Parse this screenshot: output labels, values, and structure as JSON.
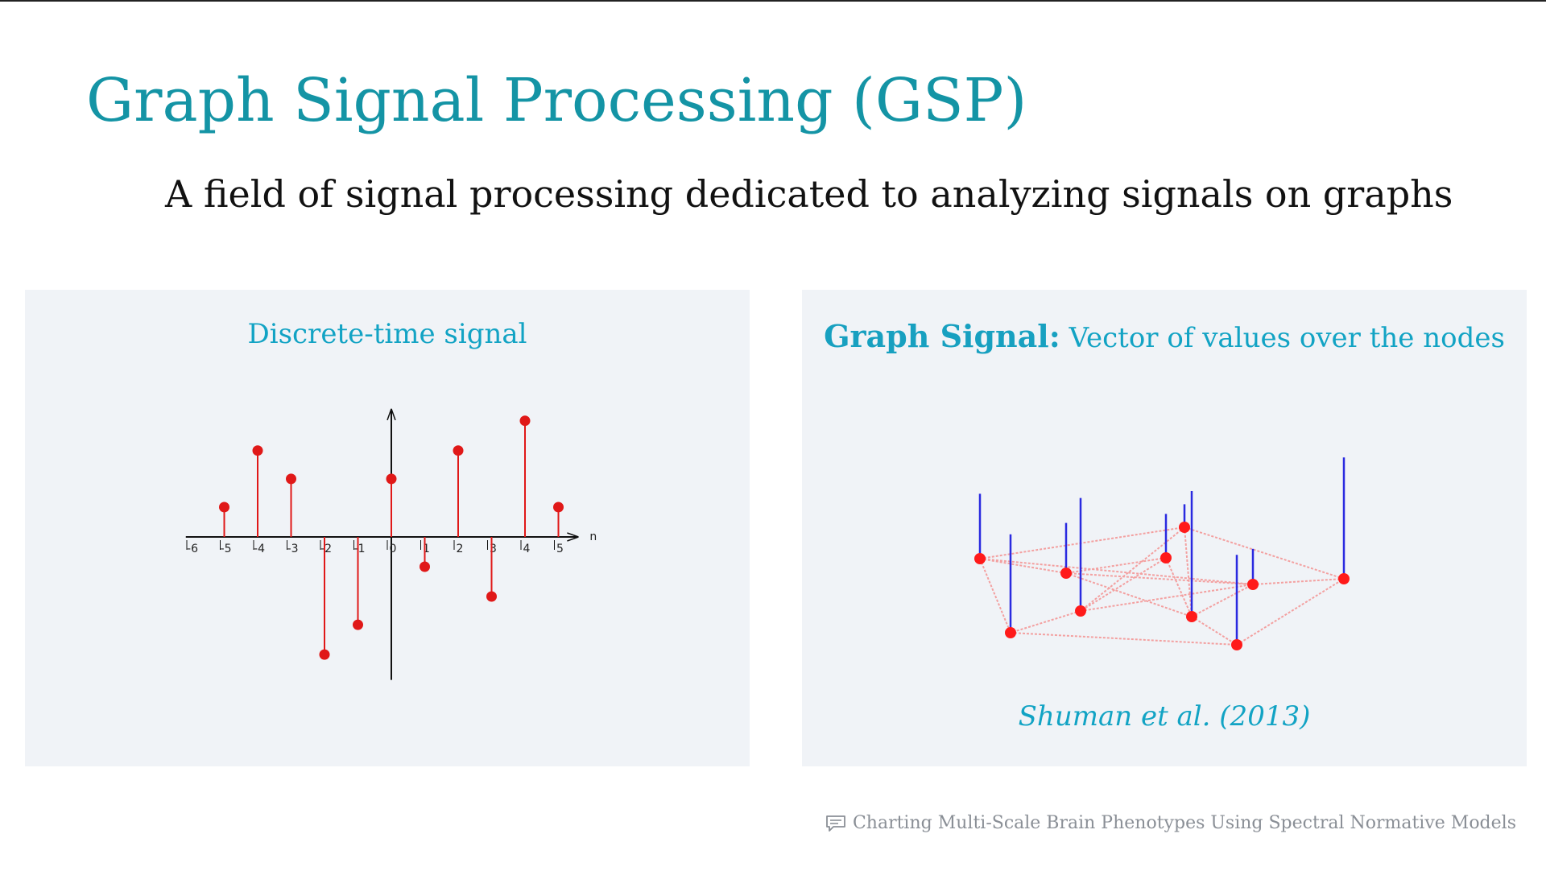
{
  "slide": {
    "title": "Graph Signal Processing (GSP)",
    "subtitle": "A field of signal processing dedicated to analyzing signals on graphs",
    "footer": "Charting Multi-Scale Brain Phenotypes Using Spectral Normative Models",
    "footer_icon": "comment-icon"
  },
  "left_panel": {
    "caption": "Discrete-time signal"
  },
  "right_panel": {
    "caption_bold": "Graph Signal:",
    "caption_rest": " Vector of values over the nodes",
    "citation": "Shuman et al. (2013)"
  },
  "chart_data": [
    {
      "type": "stem",
      "x_tick_labels": [
        "-6",
        "-5",
        "-4",
        "-3",
        "-2",
        "-1",
        "0",
        "1",
        "2",
        "3",
        "4",
        "5"
      ],
      "x_axis_label": "n",
      "x": [
        -5,
        -4,
        -3,
        -2,
        -1,
        0,
        1,
        2,
        3,
        4,
        5
      ],
      "values": [
        1.0,
        2.9,
        1.95,
        -3.95,
        -2.95,
        1.95,
        -1.0,
        2.9,
        -2.0,
        3.9,
        1.0
      ],
      "xlim": [
        -6,
        5
      ],
      "ylim": [
        -5,
        5
      ],
      "stem_color": "#e01818"
    },
    {
      "type": "graph-signal",
      "node_color": "#ff1a1a",
      "stem_color": "#2a2ae0",
      "edge_color": "#f3a0a0",
      "nodes": [
        {
          "id": 0,
          "value": 3.1
        },
        {
          "id": 1,
          "value": 4.7
        },
        {
          "id": 2,
          "value": 2.4
        },
        {
          "id": 3,
          "value": 5.4
        },
        {
          "id": 4,
          "value": 2.1
        },
        {
          "id": 5,
          "value": 1.1
        },
        {
          "id": 6,
          "value": 6.0
        },
        {
          "id": 7,
          "value": 4.3
        },
        {
          "id": 8,
          "value": 1.7
        },
        {
          "id": 9,
          "value": 5.8
        }
      ],
      "edges": [
        [
          0,
          5
        ],
        [
          0,
          2
        ],
        [
          0,
          1
        ],
        [
          0,
          8
        ],
        [
          5,
          9
        ],
        [
          5,
          6
        ],
        [
          5,
          3
        ],
        [
          4,
          2
        ],
        [
          4,
          3
        ],
        [
          4,
          6
        ],
        [
          2,
          8
        ],
        [
          2,
          6
        ],
        [
          3,
          8
        ],
        [
          3,
          1
        ],
        [
          1,
          7
        ],
        [
          7,
          9
        ],
        [
          6,
          7
        ],
        [
          6,
          8
        ],
        [
          8,
          9
        ]
      ]
    }
  ]
}
